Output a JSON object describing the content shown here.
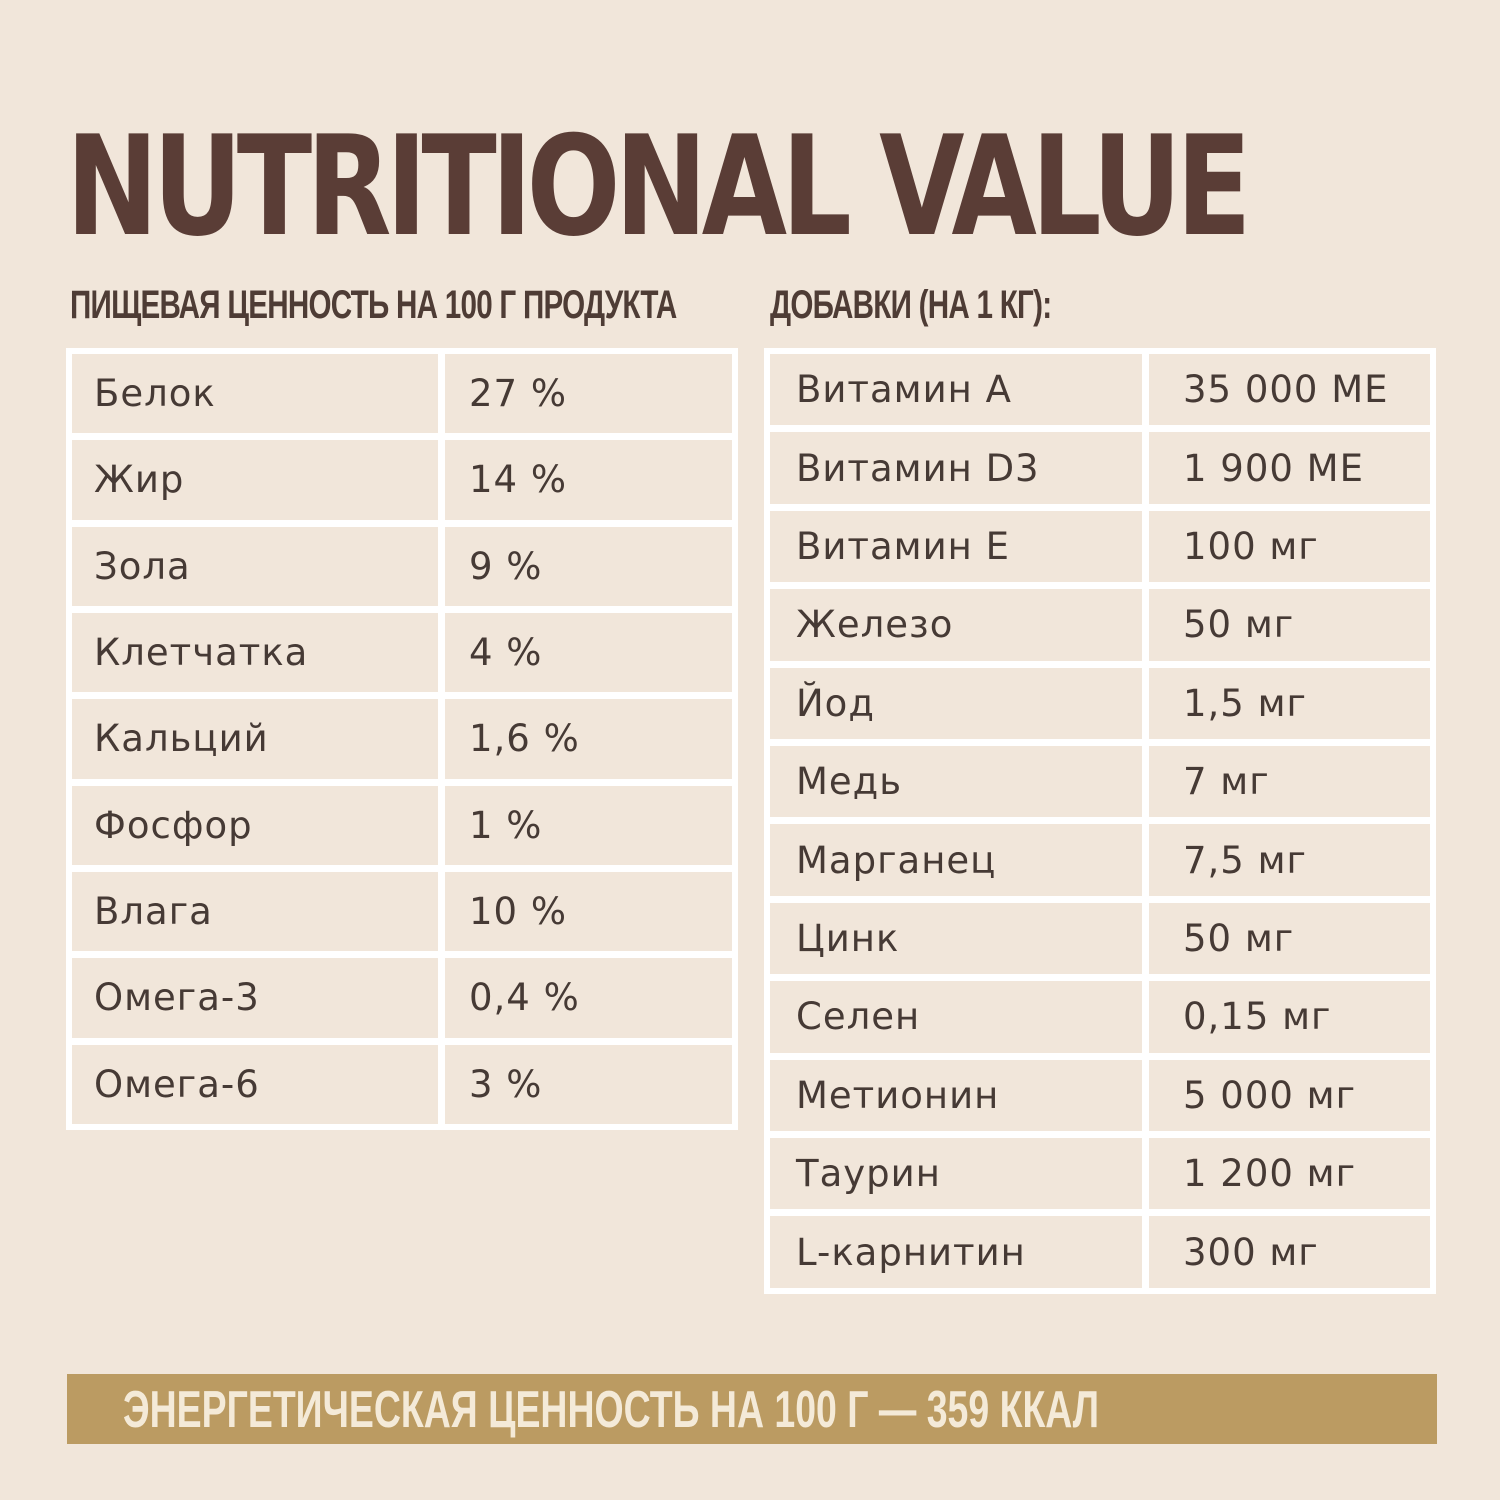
{
  "title": "NUTRITIONAL VALUE",
  "left_section": {
    "heading": "ПИЩЕВАЯ ЦЕННОСТЬ НА 100 Г ПРОДУКТА",
    "rows": [
      {
        "name": "Белок",
        "value": "27 %"
      },
      {
        "name": "Жир",
        "value": "14 %"
      },
      {
        "name": "Зола",
        "value": "9 %"
      },
      {
        "name": "Клетчатка",
        "value": "4 %"
      },
      {
        "name": "Кальций",
        "value": "1,6 %"
      },
      {
        "name": "Фосфор",
        "value": "1 %"
      },
      {
        "name": "Влага",
        "value": "10 %"
      },
      {
        "name": "Омега-3",
        "value": "0,4 %"
      },
      {
        "name": "Омега-6",
        "value": "3 %"
      }
    ]
  },
  "right_section": {
    "heading": "ДОБАВКИ (НА 1 КГ):",
    "rows": [
      {
        "name": "Витамин А",
        "value": "35 000 МЕ"
      },
      {
        "name": "Витамин D3",
        "value": "1 900 МЕ"
      },
      {
        "name": "Витамин Е",
        "value": "100 мг"
      },
      {
        "name": "Железо",
        "value": "50 мг"
      },
      {
        "name": "Йод",
        "value": "1,5 мг"
      },
      {
        "name": "Медь",
        "value": "7 мг"
      },
      {
        "name": "Марганец",
        "value": "7,5 мг"
      },
      {
        "name": "Цинк",
        "value": "50 мг"
      },
      {
        "name": "Селен",
        "value": "0,15 мг"
      },
      {
        "name": "Метионин",
        "value": "5 000 мг"
      },
      {
        "name": "Таурин",
        "value": "1 200 мг"
      },
      {
        "name": "L-карнитин",
        "value": "300 мг"
      }
    ]
  },
  "energy": "ЭНЕРГЕТИЧЕСКАЯ ЦЕННОСТЬ НА 100 Г — 359 ККАЛ",
  "colors": {
    "background": "#f1e6da",
    "title": "#5a3d36",
    "grid": "#ffffff",
    "energy_bar": "#bb9b62",
    "energy_text": "#f4ead8"
  }
}
